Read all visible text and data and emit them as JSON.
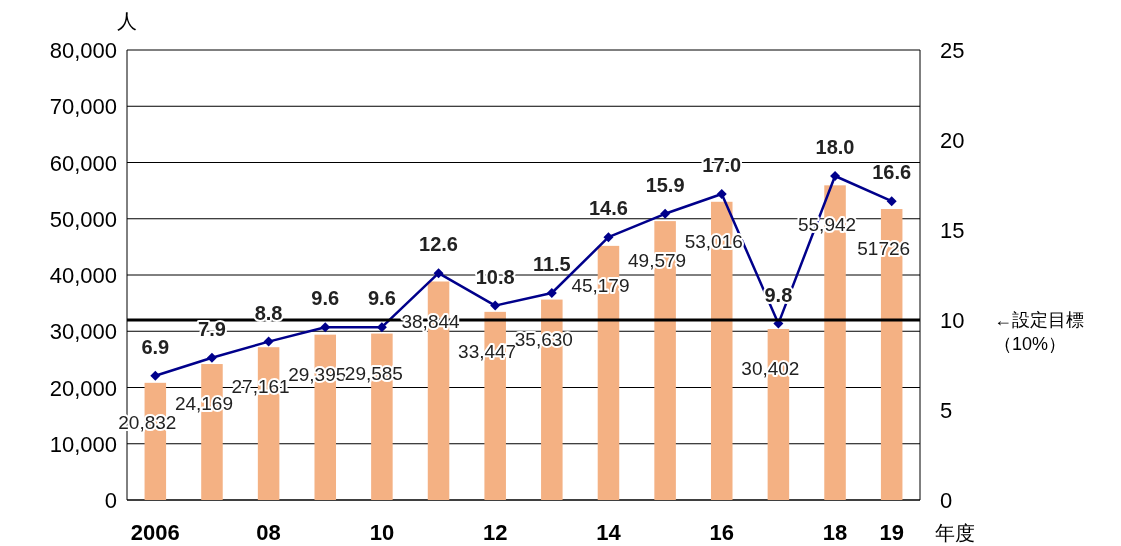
{
  "chart_data": {
    "type": "bar",
    "ylabel": "人",
    "xlabel": "年度",
    "categories": [
      "2006",
      null,
      "08",
      null,
      "10",
      null,
      "12",
      null,
      "14",
      null,
      "16",
      null,
      "18",
      "19"
    ],
    "series": [
      {
        "color": "#f4b183",
        "values": [
          20832,
          24169,
          27161,
          29395,
          29585,
          38844,
          33447,
          35630,
          45179,
          49579,
          53016,
          30402,
          55942,
          51726
        ],
        "value_labels": [
          "20,832",
          "24,169",
          "27,161",
          "29,395",
          "29,585",
          "38,844",
          "33,447",
          "35,630",
          "45,179",
          "49,579",
          "53,016",
          "30,402",
          "55,942",
          "51726"
        ]
      },
      {
        "type": "line",
        "axis": "y2",
        "color": "#00008b",
        "marker": "diamond",
        "values": [
          6.9,
          7.9,
          8.8,
          9.6,
          9.6,
          12.6,
          10.8,
          11.5,
          14.6,
          15.9,
          17.0,
          9.8,
          18.0,
          16.6
        ],
        "value_labels": [
          "6.9",
          "7.9",
          "8.8",
          "9.6",
          "9.6",
          "12.6",
          "10.8",
          "11.5",
          "14.6",
          "15.9",
          "17.0",
          "9.8",
          "18.0",
          "16.6"
        ]
      }
    ],
    "ylim": [
      0,
      80000
    ],
    "yticks": [
      0,
      {
        "value": 10000,
        "label": "10,000"
      },
      {
        "value": 20000,
        "label": "20,000"
      },
      {
        "value": 30000,
        "label": "30,000"
      },
      {
        "value": 40000,
        "label": "40,000"
      },
      {
        "value": 50000,
        "label": "50,000"
      },
      {
        "value": 60000,
        "label": "60,000"
      },
      {
        "value": 70000,
        "label": "70,000"
      },
      {
        "value": 80000,
        "label": "80,000"
      }
    ],
    "y2lim": [
      0,
      25
    ],
    "y2ticks": [
      0,
      5,
      10,
      15,
      20,
      25
    ],
    "ref_lines": [
      {
        "axis": "y2",
        "value": 10,
        "label": "←設定目標（10%）",
        "color": "#000000"
      }
    ],
    "grid": "y"
  }
}
